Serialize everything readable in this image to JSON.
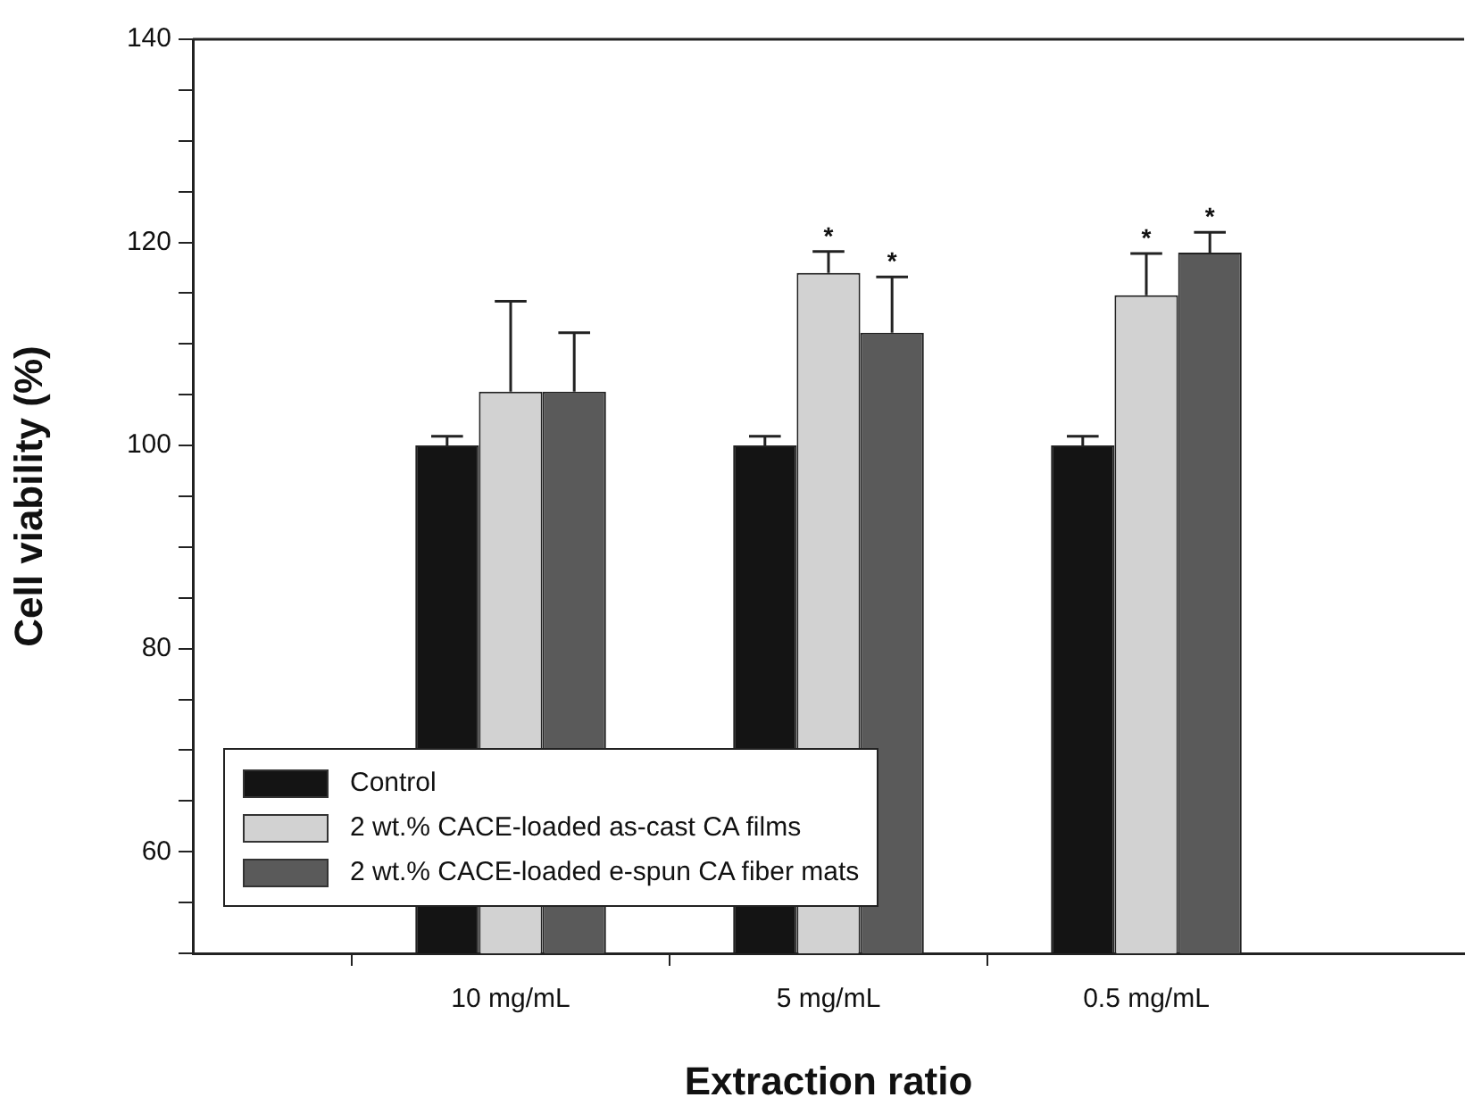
{
  "chart_data": {
    "type": "bar",
    "xlabel": "Extraction ratio",
    "ylabel": "Cell viability (%)",
    "categories": [
      null,
      "10 mg/mL",
      "5 mg/mL",
      "0.5 mg/mL",
      null
    ],
    "series": [
      {
        "name": "Control",
        "color": "#141414",
        "values": [
          null,
          100,
          100,
          100,
          null
        ],
        "errors": [
          null,
          [
            100,
            100.9
          ],
          [
            100,
            100.9
          ],
          [
            100,
            100.9
          ],
          null
        ]
      },
      {
        "name": "2 wt.% CACE-loaded as-cast CA films",
        "color": "#d2d2d2",
        "values": [
          null,
          105.3,
          117,
          114.8,
          null
        ],
        "errors": [
          null,
          [
            105.3,
            114.2
          ],
          [
            117,
            119.1
          ],
          [
            114.8,
            118.9
          ],
          null
        ]
      },
      {
        "name": "2 wt.% CACE-loaded e-spun CA fiber mats",
        "color": "#5a5a5a",
        "values": [
          null,
          105.3,
          111.1,
          119,
          null
        ],
        "errors": [
          null,
          [
            105.3,
            111.1
          ],
          [
            111.1,
            116.6
          ],
          [
            119,
            121
          ],
          null
        ]
      }
    ],
    "annotations": [
      {
        "text": "*",
        "x": "5 mg/mL",
        "y": 117
      },
      {
        "text": "*",
        "x": "5 mg/mL",
        "y": 116.6
      },
      {
        "text": "*",
        "x": "0.5 mg/mL",
        "y": 114.8
      },
      {
        "text": "*",
        "x": "0.5 mg/mL",
        "y": 119
      }
    ],
    "ylim": [
      50,
      140
    ],
    "yticks": [
      {
        "value": 50,
        "label": null
      },
      {
        "value": 55,
        "label": null
      },
      60,
      {
        "value": 65,
        "label": null
      },
      {
        "value": 70,
        "label": null
      },
      {
        "value": 75,
        "label": null
      },
      80,
      {
        "value": 85,
        "label": null
      },
      {
        "value": 90,
        "label": null
      },
      {
        "value": 95,
        "label": null
      },
      100,
      {
        "value": 105,
        "label": null
      },
      {
        "value": 110,
        "label": null
      },
      {
        "value": 115,
        "label": null
      },
      120,
      {
        "value": 125,
        "label": null
      },
      {
        "value": 130,
        "label": null
      },
      {
        "value": 135,
        "label": null
      },
      140
    ],
    "grid": false,
    "legend": "bottom left"
  }
}
